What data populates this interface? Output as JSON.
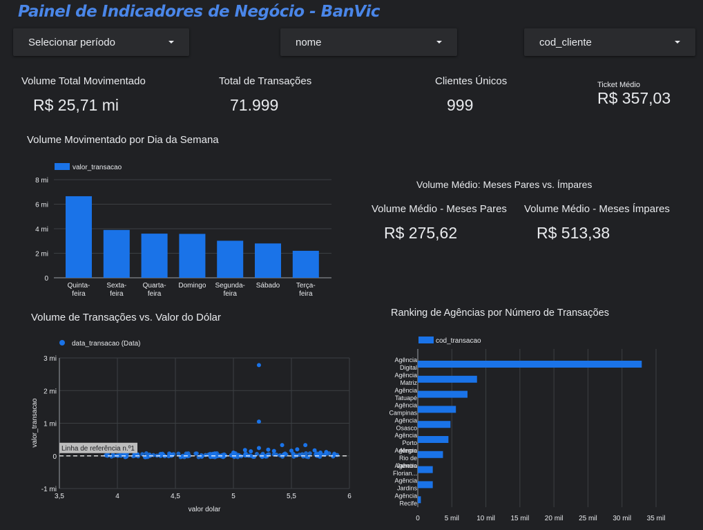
{
  "header": {
    "title": "Painel de Indicadores de Negócio - BanVic"
  },
  "filters": [
    {
      "label": "Selecionar período",
      "icon": "dropdown-arrow-icon"
    },
    {
      "label": "nome",
      "icon": "dropdown-arrow-icon"
    },
    {
      "label": "cod_cliente",
      "icon": "dropdown-arrow-icon"
    }
  ],
  "kpis": {
    "volume_total": {
      "label": "Volume Total Movimentado",
      "value": "R$ 25,71 mi"
    },
    "total_transacoes": {
      "label": "Total de Transações",
      "value": "71.999"
    },
    "clientes_unicos": {
      "label": "Clientes Únicos",
      "value": "999"
    },
    "ticket_medio": {
      "label": "Ticket Médio",
      "value": "R$ 357,03"
    }
  },
  "pares_impares": {
    "title": "Volume Médio: Meses Pares vs. Ímpares",
    "pares": {
      "label": "Volume Médio - Meses Pares",
      "value": "R$ 275,62"
    },
    "impares": {
      "label": "Volume Médio - Meses Ímpares",
      "value": "R$ 513,38"
    }
  },
  "colors": {
    "accent": "#1a73e8",
    "title": "#4a86e8",
    "background": "#202124"
  },
  "chart_data": [
    {
      "type": "bar",
      "title": "Volume Movimentado por Dia da Semana",
      "categories": [
        [
          "Quinta-",
          "feira"
        ],
        [
          "Sexta-",
          "feira"
        ],
        [
          "Quarta-",
          "feira"
        ],
        [
          "Domingo"
        ],
        [
          "Segunda-",
          "feira"
        ],
        [
          "Sábado"
        ],
        [
          "Terça-",
          "feira"
        ]
      ],
      "series": [
        {
          "name": "valor_transacao",
          "values": [
            6.65,
            3.9,
            3.6,
            3.58,
            3.02,
            2.8,
            2.2
          ]
        }
      ],
      "yticks": [
        "0",
        "2 mi",
        "4 mi",
        "6 mi",
        "8 mi"
      ],
      "ylim": [
        0,
        8
      ],
      "legend": "top-left",
      "grid": true
    },
    {
      "type": "scatter",
      "title": "Volume de Transações vs. Valor do Dólar",
      "xlabel": "valor dolar",
      "ylabel": "valor_transacao",
      "series": [
        {
          "name": "data_transacao (Data)"
        }
      ],
      "xticks": [
        "3,5",
        "4",
        "4,5",
        "5",
        "5,5",
        "6"
      ],
      "xlim": [
        3.5,
        6
      ],
      "yticks": [
        "-1 mi",
        "0",
        "1 mi",
        "2 mi",
        "3 mi"
      ],
      "ylim": [
        -1,
        3
      ],
      "reference_line": {
        "label": "Linha de referência n.º1",
        "y": 0
      },
      "outliers": [
        [
          5.22,
          2.78
        ],
        [
          5.22,
          1.05
        ],
        [
          5.22,
          0.24
        ],
        [
          5.42,
          0.33
        ],
        [
          5.62,
          0.33
        ],
        [
          5.1,
          0.18
        ],
        [
          5.3,
          0.19
        ],
        [
          5.7,
          0.17
        ],
        [
          5.5,
          0.16
        ],
        [
          5.8,
          0.12
        ],
        [
          5.0,
          0.1
        ],
        [
          5.55,
          0.2
        ],
        [
          5.35,
          0.15
        ],
        [
          5.15,
          0.14
        ],
        [
          5.75,
          0.1
        ]
      ],
      "x_range_points": [
        3.9,
        5.95
      ],
      "legend": "top-left",
      "grid": true
    },
    {
      "type": "bar",
      "orientation": "horizontal",
      "title": "Ranking de Agências por Número de Transações",
      "categories": [
        [
          "Agência",
          "Digital"
        ],
        [
          "Agência",
          "Matriz"
        ],
        [
          "Agência",
          "Tatuapé"
        ],
        [
          "Agência",
          "Campinas"
        ],
        [
          "Agência",
          "Osasco"
        ],
        [
          "Agência",
          "Porto",
          "Alegre"
        ],
        [
          "Agência",
          "Rio de",
          "Janeiro"
        ],
        [
          "Agência",
          "Florian..."
        ],
        [
          "Agência",
          "Jardins"
        ],
        [
          "Agência",
          "Recife"
        ]
      ],
      "series": [
        {
          "name": "cod_transacao",
          "values": [
            32900,
            8700,
            7300,
            5600,
            4800,
            4500,
            3700,
            2200,
            2200,
            450
          ]
        }
      ],
      "xticks": [
        "0",
        "5 mil",
        "10 mil",
        "15 mil",
        "20 mil",
        "25 mil",
        "30 mil",
        "35 mil"
      ],
      "xlim": [
        0,
        35000
      ],
      "legend": "top-left",
      "grid": true
    }
  ]
}
